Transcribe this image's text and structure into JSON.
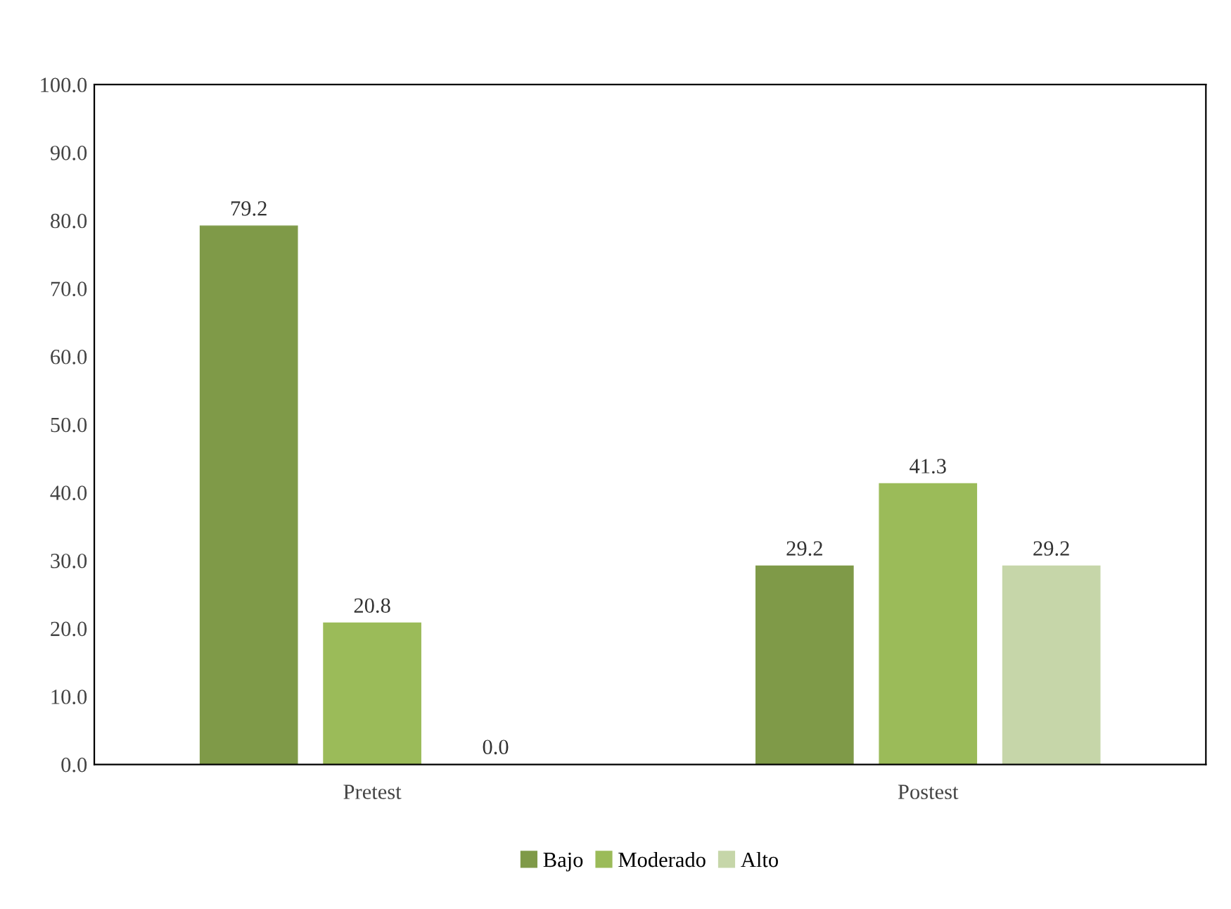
{
  "chart_data": {
    "type": "bar",
    "categories": [
      "Pretest",
      "Postest"
    ],
    "series": [
      {
        "name": "Bajo",
        "color": "#7f9a48",
        "values": [
          79.2,
          29.2
        ],
        "value_labels": [
          "79.2",
          "29.2"
        ]
      },
      {
        "name": "Moderado",
        "color": "#9bbb59",
        "values": [
          20.8,
          41.3
        ],
        "value_labels": [
          "20.8",
          "41.3"
        ]
      },
      {
        "name": "Alto",
        "color": "#c6d6a9",
        "values": [
          0.0,
          29.2
        ],
        "value_labels": [
          "0.0",
          "29.2"
        ]
      }
    ],
    "ylim": [
      0,
      100
    ],
    "yticks": [
      {
        "value": 0,
        "label": "0.0"
      },
      {
        "value": 10,
        "label": "10.0"
      },
      {
        "value": 20,
        "label": "20.0"
      },
      {
        "value": 30,
        "label": "30.0"
      },
      {
        "value": 40,
        "label": "40.0"
      },
      {
        "value": 50,
        "label": "50.0"
      },
      {
        "value": 60,
        "label": "60.0"
      },
      {
        "value": 70,
        "label": "70.0"
      },
      {
        "value": 80,
        "label": "80.0"
      },
      {
        "value": 90,
        "label": "90.0"
      },
      {
        "value": 100,
        "label": "100.0"
      }
    ],
    "grid": false,
    "legend": "bottom"
  }
}
